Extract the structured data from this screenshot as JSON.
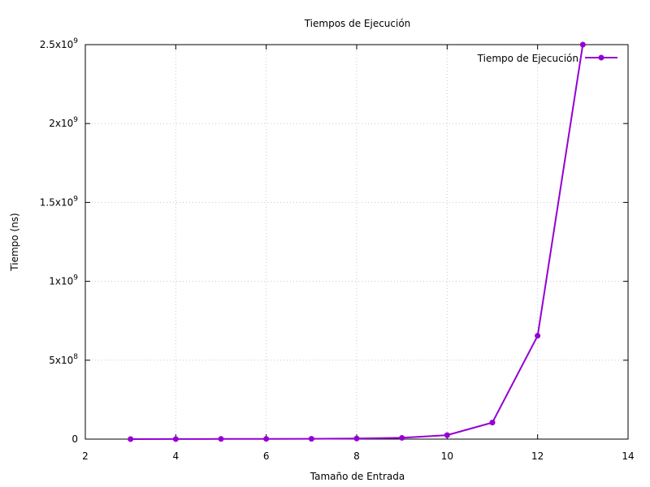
{
  "chart_data": {
    "type": "line",
    "title": "Tiempos de Ejecución",
    "xlabel": "Tamaño de Entrada",
    "ylabel": "Tiempo (ns)",
    "xlim": [
      2,
      14
    ],
    "ylim": [
      0,
      2500000000
    ],
    "grid": true,
    "legend_position": "top-right",
    "x_ticks": [
      {
        "value": 2,
        "label": "2"
      },
      {
        "value": 4,
        "label": "4"
      },
      {
        "value": 6,
        "label": "6"
      },
      {
        "value": 8,
        "label": "8"
      },
      {
        "value": 10,
        "label": "10"
      },
      {
        "value": 12,
        "label": "12"
      },
      {
        "value": 14,
        "label": "14"
      }
    ],
    "y_ticks": [
      {
        "value": 0,
        "mantissa": "0",
        "exp": ""
      },
      {
        "value": 500000000,
        "mantissa": "5x10",
        "exp": "8"
      },
      {
        "value": 1000000000,
        "mantissa": "1x10",
        "exp": "9"
      },
      {
        "value": 1500000000,
        "mantissa": "1.5x10",
        "exp": "9"
      },
      {
        "value": 2000000000,
        "mantissa": "2x10",
        "exp": "9"
      },
      {
        "value": 2500000000,
        "mantissa": "2.5x10",
        "exp": "9"
      }
    ],
    "series": [
      {
        "name": "Tiempo de Ejecución",
        "color": "#9400d3",
        "x": [
          3,
          4,
          5,
          6,
          7,
          8,
          9,
          10,
          11,
          12,
          13
        ],
        "y": [
          100000,
          300000,
          1000000,
          1500000,
          2000000,
          4000000,
          8000000,
          25000000,
          105000000,
          655000000,
          2500000000
        ]
      }
    ]
  }
}
